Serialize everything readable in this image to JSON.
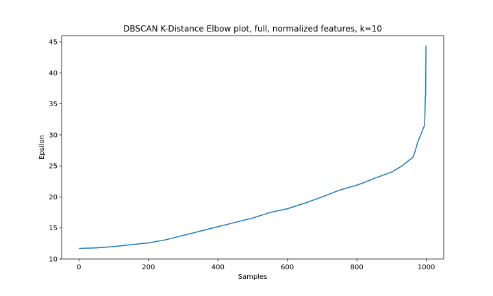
{
  "chart_data": {
    "type": "line",
    "title": "DBSCAN K-Distance Elbow plot, full, normalized features, k=10",
    "xlabel": "Samples",
    "ylabel": "Epsilon",
    "xlim": [
      -50,
      1050
    ],
    "ylim": [
      10,
      46
    ],
    "xticks": [
      0,
      200,
      400,
      600,
      800,
      1000
    ],
    "yticks": [
      10,
      15,
      20,
      25,
      30,
      35,
      40,
      45
    ],
    "grid": false,
    "legend": "none",
    "line_color": "#1f77b4",
    "series": [
      {
        "x": [
          0,
          50,
          100,
          150,
          200,
          250,
          300,
          350,
          400,
          450,
          500,
          550,
          600,
          650,
          700,
          750,
          800,
          820,
          850,
          900,
          930,
          950,
          960,
          965,
          970,
          975,
          980,
          985,
          990,
          993,
          995,
          996,
          997,
          998,
          999
        ],
        "y": [
          11.7,
          11.8,
          12.0,
          12.3,
          12.6,
          13.1,
          13.8,
          14.5,
          15.2,
          15.9,
          16.6,
          17.5,
          18.1,
          19.0,
          20.0,
          21.1,
          21.9,
          22.3,
          23.0,
          24.0,
          25.0,
          25.9,
          26.3,
          26.9,
          27.8,
          28.8,
          29.5,
          30.2,
          30.9,
          31.3,
          31.5,
          33.5,
          36.0,
          36.5,
          44.4
        ]
      }
    ]
  }
}
